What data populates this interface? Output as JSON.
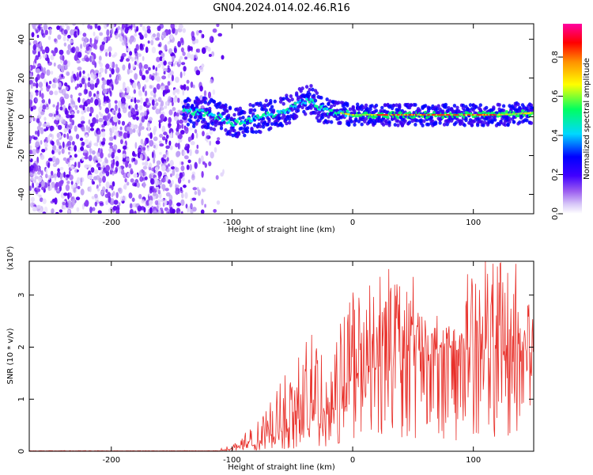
{
  "title": "GN04.2024.014.02.46.R16",
  "chart_data": [
    {
      "type": "heatmap",
      "title": "GN04.2024.014.02.46.R16",
      "xlabel": "Height of straight line (km)",
      "ylabel": "Frequency (Hz)",
      "xlim": [
        -268,
        150
      ],
      "ylim": [
        -50,
        48
      ],
      "xticks": [
        -200,
        -100,
        0,
        100
      ],
      "yticks": [
        -40,
        -20,
        0,
        20,
        40
      ],
      "colorbar": {
        "label": "Normalized spectral amplitude",
        "range": [
          0.0,
          0.97
        ],
        "ticks": [
          0.0,
          0.2,
          0.4,
          0.6,
          0.8
        ],
        "colors": [
          "#ffffff",
          "#9a5cf0",
          "#4000ff",
          "#0000ff",
          "#00d8ff",
          "#00ff60",
          "#ffff00",
          "#ff9000",
          "#ff0000",
          "#ff00a0"
        ]
      },
      "noise_region_x": [
        -268,
        -115
      ],
      "signal_start_x": -140,
      "ridge": {
        "x": [
          -140,
          -120,
          -100,
          -90,
          -80,
          -70,
          -60,
          -50,
          -40,
          -35,
          -30,
          -20,
          -10,
          0,
          20,
          40,
          60,
          80,
          100,
          120,
          150
        ],
        "y": [
          3,
          2,
          -3,
          -2,
          -1,
          1,
          2,
          5,
          8,
          9,
          6,
          3,
          2,
          1,
          1,
          1,
          1,
          1,
          1,
          1,
          2
        ]
      }
    },
    {
      "type": "line",
      "xlabel": "Height of straight line (km)",
      "ylabel": "SNR (10 * v/v)",
      "scale_note": "(x10⁴)",
      "xlim": [
        -268,
        150
      ],
      "ylim": [
        0,
        3.65
      ],
      "xticks": [
        -200,
        -100,
        0,
        100
      ],
      "yticks": [
        0,
        1,
        2,
        3
      ],
      "color": "#e8302a",
      "envelope": {
        "x": [
          -268,
          -110,
          -100,
          -80,
          -60,
          -40,
          -20,
          0,
          20,
          40,
          60,
          80,
          100,
          120,
          140,
          150
        ],
        "mean": [
          0.0,
          0.01,
          0.05,
          0.2,
          0.4,
          0.6,
          0.9,
          1.3,
          1.6,
          1.9,
          2.0,
          1.95,
          1.9,
          2.0,
          1.7,
          1.4
        ],
        "peak": [
          0.01,
          0.05,
          0.12,
          0.55,
          1.3,
          2.45,
          1.8,
          3.05,
          3.5,
          3.35,
          2.6,
          2.4,
          3.4,
          3.65,
          3.6,
          2.8
        ]
      },
      "series": [
        {
          "x": [
            -60,
            -40,
            -10,
            0,
            30,
            35,
            50,
            70,
            80,
            95,
            105,
            110,
            115,
            120,
            135,
            145
          ],
          "y": [
            1.3,
            1.0,
            2.45,
            3.05,
            3.5,
            3.2,
            3.35,
            2.6,
            2.4,
            3.4,
            3.1,
            3.65,
            2.9,
            3.55,
            3.6,
            2.8
          ]
        }
      ]
    }
  ]
}
